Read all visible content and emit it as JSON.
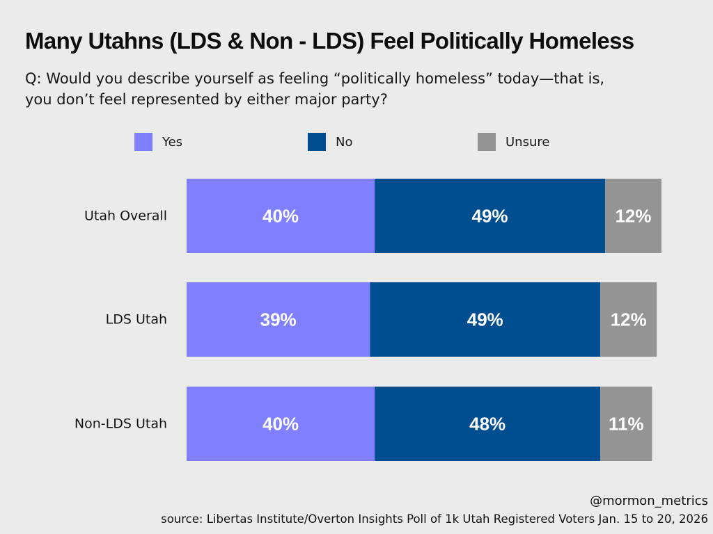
{
  "chart_data": {
    "type": "bar",
    "orientation": "horizontal",
    "stacked": true,
    "title": "Many Utahns (LDS & Non - LDS) Feel Politically Homeless",
    "subtitle_lines": [
      "Q: Would you describe yourself as feeling “politically homeless” today—that is,",
      "you don’t feel represented by either major party?"
    ],
    "categories": [
      "Utah Overall",
      "LDS Utah",
      "Non-LDS Utah"
    ],
    "series": [
      {
        "name": "Yes",
        "color": "#8080ff",
        "values": [
          40,
          39,
          40
        ],
        "labels": [
          "40%",
          "39%",
          "40%"
        ]
      },
      {
        "name": "No",
        "color": "#004e8f",
        "values": [
          49,
          49,
          48
        ],
        "labels": [
          "49%",
          "49%",
          "48%"
        ]
      },
      {
        "name": "Unsure",
        "color": "#949494",
        "values": [
          12,
          12,
          11
        ],
        "labels": [
          "12%",
          "12%",
          "11%"
        ]
      }
    ],
    "xlim": [
      0,
      101
    ],
    "legend_position": "top",
    "grid": false
  },
  "credit": "@mormon_metrics",
  "source": "source: Libertas Institute/Overton Insights Poll of 1k Utah Registered Voters Jan. 15 to 20, 2026"
}
